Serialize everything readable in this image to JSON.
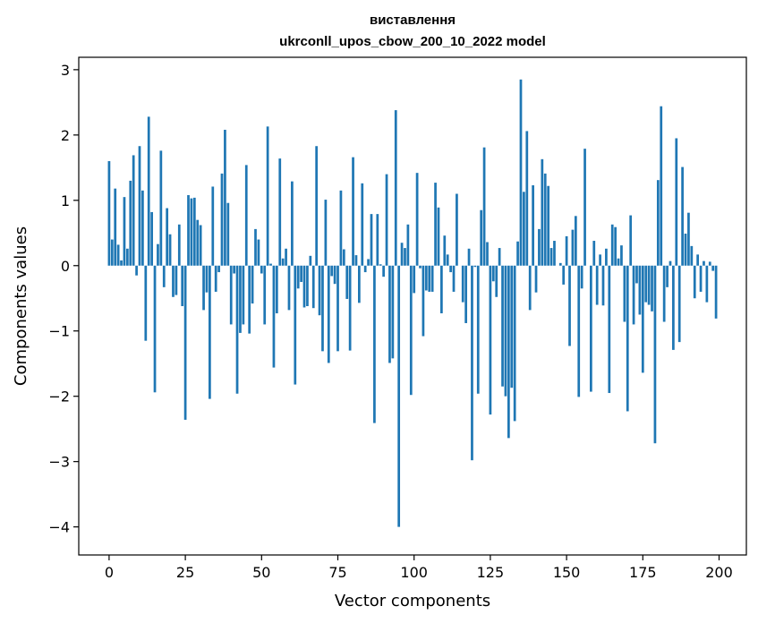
{
  "chart_data": {
    "type": "bar",
    "title_line1": "виставлення",
    "title_line2": "ukrconll_upos_cbow_200_10_2022 model",
    "xlabel": "Vector components",
    "ylabel": "Components values",
    "xlim": [
      -9.95,
      208.95
    ],
    "ylim": [
      -4.43,
      3.19
    ],
    "xticks": [
      0,
      25,
      50,
      75,
      100,
      125,
      150,
      175,
      200
    ],
    "yticks": [
      -4,
      -3,
      -2,
      -1,
      0,
      1,
      2,
      3
    ],
    "ytick_labels": [
      "−4",
      "−3",
      "−2",
      "−1",
      "0",
      "1",
      "2",
      "3"
    ],
    "bar_color": "#1f77b4",
    "grid": false,
    "x": [
      0,
      1,
      2,
      3,
      4,
      5,
      6,
      7,
      8,
      9,
      10,
      11,
      12,
      13,
      14,
      15,
      16,
      17,
      18,
      19,
      20,
      21,
      22,
      23,
      24,
      25,
      26,
      27,
      28,
      29,
      30,
      31,
      32,
      33,
      34,
      35,
      36,
      37,
      38,
      39,
      40,
      41,
      42,
      43,
      44,
      45,
      46,
      47,
      48,
      49,
      50,
      51,
      52,
      53,
      54,
      55,
      56,
      57,
      58,
      59,
      60,
      61,
      62,
      63,
      64,
      65,
      66,
      67,
      68,
      69,
      70,
      71,
      72,
      73,
      74,
      75,
      76,
      77,
      78,
      79,
      80,
      81,
      82,
      83,
      84,
      85,
      86,
      87,
      88,
      89,
      90,
      91,
      92,
      93,
      94,
      95,
      96,
      97,
      98,
      99,
      100,
      101,
      102,
      103,
      104,
      105,
      106,
      107,
      108,
      109,
      110,
      111,
      112,
      113,
      114,
      115,
      116,
      117,
      118,
      119,
      120,
      121,
      122,
      123,
      124,
      125,
      126,
      127,
      128,
      129,
      130,
      131,
      132,
      133,
      134,
      135,
      136,
      137,
      138,
      139,
      140,
      141,
      142,
      143,
      144,
      145,
      146,
      147,
      148,
      149,
      150,
      151,
      152,
      153,
      154,
      155,
      156,
      157,
      158,
      159,
      160,
      161,
      162,
      163,
      164,
      165,
      166,
      167,
      168,
      169,
      170,
      171,
      172,
      173,
      174,
      175,
      176,
      177,
      178,
      179,
      180,
      181,
      182,
      183,
      184,
      185,
      186,
      187,
      188,
      189,
      190,
      191,
      192,
      193,
      194,
      195,
      196,
      197,
      198,
      199
    ],
    "values": [
      1.6,
      0.4,
      1.18,
      0.32,
      0.08,
      1.05,
      0.26,
      1.3,
      1.69,
      -0.15,
      1.83,
      1.15,
      -1.15,
      2.28,
      0.82,
      -1.94,
      0.33,
      1.76,
      -0.33,
      0.88,
      0.48,
      -0.48,
      -0.45,
      0.63,
      -0.62,
      -2.36,
      1.08,
      1.03,
      1.04,
      0.7,
      0.62,
      -0.68,
      -0.41,
      -2.04,
      1.21,
      -0.4,
      -0.1,
      1.41,
      2.08,
      0.96,
      -0.9,
      -0.12,
      -1.96,
      -1.03,
      -0.9,
      1.54,
      -1.04,
      -0.58,
      0.56,
      0.4,
      -0.12,
      -0.9,
      2.13,
      0.03,
      -1.56,
      -0.73,
      1.64,
      0.11,
      0.26,
      -0.68,
      1.29,
      -1.82,
      -0.35,
      -0.25,
      -0.64,
      -0.62,
      0.15,
      -0.65,
      1.83,
      -0.76,
      -1.31,
      1.01,
      -1.49,
      -0.16,
      -0.28,
      -1.31,
      1.15,
      0.25,
      -0.51,
      -1.3,
      1.66,
      0.16,
      -0.57,
      1.26,
      -0.1,
      0.1,
      0.79,
      -2.41,
      0.79,
      0.02,
      -0.17,
      1.4,
      -1.49,
      -1.42,
      2.38,
      -4.0,
      0.35,
      0.27,
      0.63,
      -1.98,
      -0.42,
      1.42,
      -0.04,
      -1.08,
      -0.38,
      -0.4,
      -0.4,
      1.27,
      0.89,
      -0.73,
      0.46,
      0.17,
      -0.1,
      -0.4,
      1.1,
      0.0,
      -0.56,
      -0.88,
      0.26,
      -2.98,
      -0.02,
      -1.96,
      0.85,
      1.81,
      0.36,
      -2.28,
      -0.24,
      -0.48,
      0.27,
      -1.85,
      -2.0,
      -2.64,
      -1.87,
      -2.38,
      0.37,
      2.85,
      1.13,
      2.06,
      -0.68,
      1.23,
      -0.41,
      0.56,
      1.63,
      1.41,
      1.22,
      0.27,
      0.38,
      0.0,
      0.04,
      -0.29,
      0.45,
      -1.23,
      0.55,
      0.76,
      -2.01,
      -0.35,
      1.79,
      0.0,
      -1.93,
      0.38,
      -0.6,
      0.17,
      -0.61,
      0.26,
      -1.95,
      0.63,
      0.59,
      0.11,
      0.31,
      -0.86,
      -2.23,
      0.77,
      -0.9,
      -0.27,
      -0.75,
      -1.64,
      -0.56,
      -0.6,
      -0.7,
      -2.72,
      1.31,
      2.44,
      -0.86,
      -0.33,
      0.07,
      -1.29,
      1.95,
      -1.17,
      1.51,
      0.49,
      0.81,
      0.3,
      -0.5,
      0.17,
      -0.4,
      0.07,
      -0.56,
      0.06,
      -0.08,
      -0.81
    ]
  }
}
